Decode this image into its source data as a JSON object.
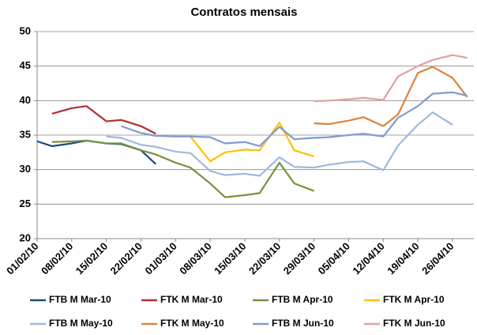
{
  "chart_data": {
    "type": "line",
    "title": "Contratos mensais",
    "x": [
      "2010-02-01",
      "2010-02-04",
      "2010-02-08",
      "2010-02-11",
      "2010-02-15",
      "2010-02-18",
      "2010-02-22",
      "2010-02-25",
      "2010-03-01",
      "2010-03-04",
      "2010-03-08",
      "2010-03-11",
      "2010-03-15",
      "2010-03-18",
      "2010-03-22",
      "2010-03-25",
      "2010-03-29",
      "2010-04-01",
      "2010-04-05",
      "2010-04-08",
      "2010-04-12",
      "2010-04-15",
      "2010-04-19",
      "2010-04-22",
      "2010-04-26",
      "2010-04-29"
    ],
    "series": [
      {
        "name": "FTB M Mar-10",
        "color": "#1f497d",
        "values": [
          34.1,
          33.4,
          33.8,
          34.2,
          33.8,
          33.7,
          32.8,
          30.8,
          null,
          null,
          null,
          null,
          null,
          null,
          null,
          null,
          null,
          null,
          null,
          null,
          null,
          null,
          null,
          null,
          null,
          null
        ]
      },
      {
        "name": "FTK M Mar-10",
        "color": "#b22f2c",
        "values": [
          null,
          38.1,
          38.9,
          39.2,
          37.0,
          37.2,
          36.3,
          35.2,
          null,
          null,
          null,
          null,
          null,
          null,
          null,
          null,
          null,
          null,
          null,
          null,
          null,
          null,
          null,
          null,
          null,
          null
        ]
      },
      {
        "name": "FTB M Apr-10",
        "color": "#76923c",
        "values": [
          null,
          34.0,
          34.1,
          34.2,
          33.8,
          33.8,
          32.8,
          32.2,
          31.0,
          30.3,
          28.0,
          26.0,
          26.3,
          26.6,
          31.0,
          28.0,
          26.9,
          null,
          null,
          null,
          null,
          null,
          null,
          null,
          null,
          null
        ]
      },
      {
        "name": "FTK M Apr-10",
        "color": "#ffc000",
        "values": [
          null,
          null,
          null,
          null,
          null,
          null,
          null,
          null,
          null,
          34.8,
          31.2,
          32.5,
          32.9,
          32.8,
          36.8,
          32.8,
          31.9,
          null,
          null,
          null,
          null,
          null,
          null,
          null,
          null,
          null
        ]
      },
      {
        "name": "FTB M May-10",
        "color": "#9cb9dd",
        "values": [
          null,
          null,
          null,
          null,
          34.8,
          34.6,
          33.6,
          33.3,
          32.6,
          32.4,
          29.8,
          29.2,
          29.4,
          29.1,
          31.8,
          30.4,
          30.3,
          30.7,
          31.1,
          31.2,
          29.9,
          33.5,
          36.5,
          38.3,
          36.5,
          null
        ]
      },
      {
        "name": "FTK M May-10",
        "color": "#e0813a",
        "values": [
          null,
          null,
          null,
          null,
          null,
          null,
          null,
          null,
          null,
          null,
          null,
          null,
          null,
          null,
          null,
          null,
          36.7,
          36.6,
          37.1,
          37.6,
          36.3,
          38.0,
          44.0,
          44.9,
          43.3,
          40.5
        ]
      },
      {
        "name": "FTB M Jun-10",
        "color": "#7f9ccd",
        "values": [
          null,
          null,
          null,
          null,
          null,
          36.3,
          35.3,
          34.9,
          34.8,
          34.8,
          34.7,
          33.8,
          34.0,
          33.4,
          36.2,
          34.4,
          34.6,
          34.7,
          35.0,
          35.2,
          34.8,
          37.5,
          39.2,
          41.0,
          41.2,
          40.7
        ]
      },
      {
        "name": "FTK M Jun-10",
        "color": "#e2a0a0",
        "values": [
          null,
          null,
          null,
          null,
          null,
          null,
          null,
          null,
          null,
          null,
          null,
          null,
          null,
          null,
          null,
          null,
          39.9,
          40.0,
          40.2,
          40.4,
          40.1,
          43.5,
          45.0,
          45.9,
          46.6,
          46.2
        ]
      }
    ],
    "xlim": [
      "2010-02-01",
      "2010-04-30"
    ],
    "xticks": [
      {
        "value": "2010-02-01",
        "label": "01/02/10"
      },
      {
        "value": "2010-02-08",
        "label": "08/02/10"
      },
      {
        "value": "2010-02-15",
        "label": "15/02/10"
      },
      {
        "value": "2010-02-22",
        "label": "22/02/10"
      },
      {
        "value": "2010-03-01",
        "label": "01/03/10"
      },
      {
        "value": "2010-03-08",
        "label": "08/03/10"
      },
      {
        "value": "2010-03-15",
        "label": "15/03/10"
      },
      {
        "value": "2010-03-22",
        "label": "22/03/10"
      },
      {
        "value": "2010-03-29",
        "label": "29/03/10"
      },
      {
        "value": "2010-04-05",
        "label": "05/04/10"
      },
      {
        "value": "2010-04-12",
        "label": "12/04/10"
      },
      {
        "value": "2010-04-19",
        "label": "19/04/10"
      },
      {
        "value": "2010-04-26",
        "label": "26/04/10"
      }
    ],
    "ylim": [
      20,
      50
    ],
    "yticks": [
      20,
      25,
      30,
      35,
      40,
      45,
      50
    ],
    "grid": true
  }
}
